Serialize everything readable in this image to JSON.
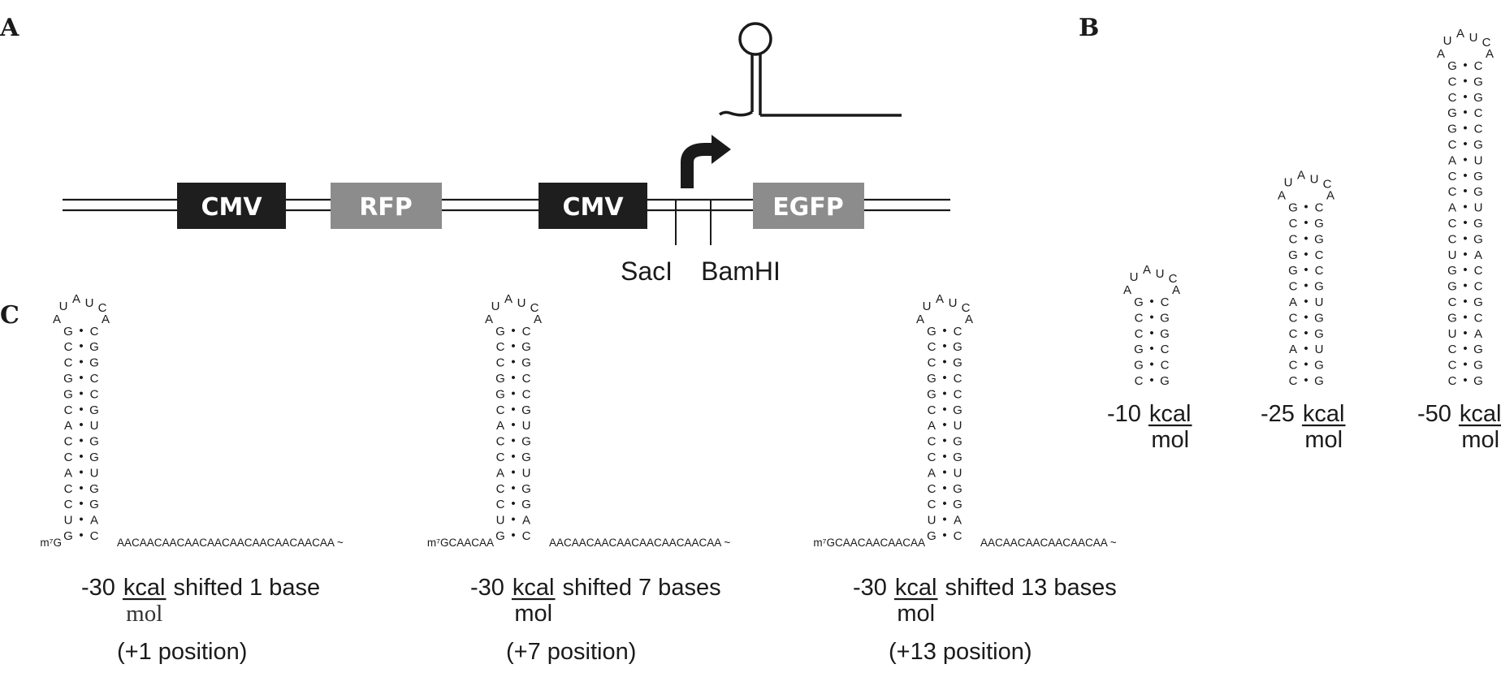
{
  "panels": {
    "a": "A",
    "b": "B",
    "c": "C"
  },
  "construct": {
    "elements": [
      "CMV",
      "RFP",
      "CMV",
      "EGFP"
    ],
    "sites": [
      "SacI",
      "BamHI"
    ],
    "colors": {
      "promoter": "#1e1e1e",
      "reporter": "#8c8c8c",
      "line": "#1a1a1a"
    }
  },
  "hairpin_icon": "hairpin-icon",
  "promoter_arrow_icon": "bent-arrow-icon",
  "loop": [
    "U",
    "A",
    "U",
    "C",
    "A",
    "A"
  ],
  "pair_dot": "•",
  "stems": {
    "short": [
      "G-C",
      "C-G",
      "C-G",
      "G-C",
      "G-C",
      "C-G"
    ],
    "medium": [
      "G-C",
      "C-G",
      "C-G",
      "G-C",
      "G-C",
      "C-G",
      "A-U",
      "C-G",
      "C-G",
      "A-U",
      "C-G",
      "C-G"
    ],
    "long": [
      "G-C",
      "C-G",
      "C-G",
      "G-C",
      "G-C",
      "C-G",
      "A-U",
      "C-G",
      "C-G",
      "A-U",
      "C-G",
      "C-G",
      "U-A",
      "G-C",
      "G-C",
      "C-G",
      "G-C",
      "U-A",
      "C-G",
      "C-G",
      "C-G"
    ],
    "c_panel": [
      "G-C",
      "C-G",
      "C-G",
      "G-C",
      "G-C",
      "C-G",
      "A-U",
      "C-G",
      "C-G",
      "A-U",
      "C-G",
      "C-G",
      "U-A",
      "G-C"
    ]
  },
  "b_panel": {
    "energies": [
      {
        "num": "-10",
        "unit": "kcal",
        "den": "mol"
      },
      {
        "num": "-25",
        "unit": "kcal",
        "den": "mol"
      },
      {
        "num": "-50",
        "unit": "kcal",
        "den": "mol"
      }
    ]
  },
  "c_panel": {
    "constructs": [
      {
        "prefix": "m⁷G",
        "tail": "AACAACAACAACAACAACAACAACAACAA ~",
        "num": "-30",
        "unit": "kcal",
        "den": "mol",
        "suffix": "shifted 1 base",
        "position": "(+1 position)"
      },
      {
        "prefix": "m⁷GCAACAA",
        "tail": "AACAACAACAACAACAACAACAA ~",
        "num": "-30",
        "unit": "kcal",
        "den": "mol",
        "suffix": "shifted 7 bases",
        "position": "(+7 position)"
      },
      {
        "prefix": "m⁷GCAACAACAACAA",
        "tail": "AACAACAACAACAACAA ~",
        "num": "-30",
        "unit": "kcal",
        "den": "mol",
        "suffix": "shifted 13 bases",
        "position": "(+13 position)"
      }
    ]
  }
}
